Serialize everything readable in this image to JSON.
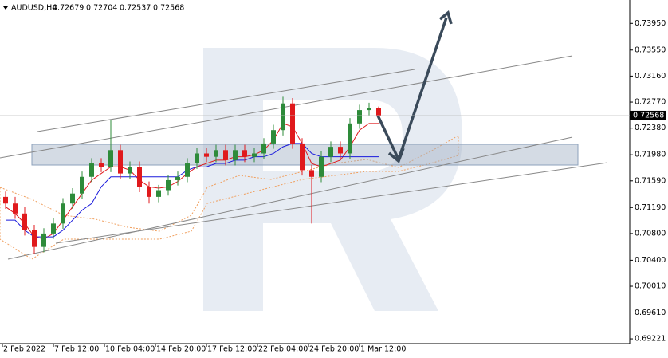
{
  "chart_data": {
    "type": "candlestick",
    "symbol": "AUDUSD,H4",
    "ohlc": [
      0.72679,
      0.72704,
      0.72537,
      0.72568
    ],
    "x": [
      1,
      4,
      7,
      10,
      13,
      16,
      19,
      22,
      25,
      28,
      31,
      34,
      37,
      40,
      43,
      46,
      49,
      52,
      55,
      58,
      61,
      64,
      67,
      70,
      73,
      76,
      79,
      82,
      85,
      88,
      91,
      94,
      97,
      100,
      103,
      106,
      109,
      112,
      115,
      118
    ],
    "open": [
      0.7135,
      0.7125,
      0.711,
      0.7085,
      0.706,
      0.708,
      0.7095,
      0.7125,
      0.714,
      0.7165,
      0.7185,
      0.718,
      0.7205,
      0.717,
      0.718,
      0.715,
      0.7135,
      0.7145,
      0.716,
      0.7165,
      0.7185,
      0.72,
      0.7195,
      0.7205,
      0.719,
      0.7205,
      0.7195,
      0.72,
      0.7215,
      0.7235,
      0.7275,
      0.7215,
      0.7175,
      0.7165,
      0.7195,
      0.721,
      0.72,
      0.7245,
      0.7265,
      0.72679
    ],
    "high": [
      0.7143,
      0.7135,
      0.712,
      0.7093,
      0.7088,
      0.7103,
      0.7133,
      0.7148,
      0.7173,
      0.7193,
      0.7193,
      0.725,
      0.7213,
      0.7188,
      0.7188,
      0.7158,
      0.7153,
      0.7168,
      0.7173,
      0.7193,
      0.7208,
      0.7208,
      0.7213,
      0.7213,
      0.7213,
      0.7213,
      0.7208,
      0.7223,
      0.7243,
      0.7285,
      0.7283,
      0.7223,
      0.7183,
      0.7203,
      0.7218,
      0.7218,
      0.7253,
      0.7273,
      0.7276,
      0.72704
    ],
    "low": [
      0.7117,
      0.7102,
      0.7077,
      0.705,
      0.7052,
      0.7072,
      0.7087,
      0.7117,
      0.7132,
      0.7157,
      0.7172,
      0.7172,
      0.7162,
      0.7162,
      0.7142,
      0.7125,
      0.7127,
      0.7137,
      0.7152,
      0.7157,
      0.7177,
      0.7187,
      0.7187,
      0.7182,
      0.7182,
      0.7187,
      0.7187,
      0.7192,
      0.7207,
      0.7227,
      0.7207,
      0.7167,
      0.7095,
      0.7157,
      0.7187,
      0.7192,
      0.7192,
      0.7237,
      0.7257,
      0.72537
    ],
    "close": [
      0.7125,
      0.711,
      0.7085,
      0.706,
      0.708,
      0.7095,
      0.7125,
      0.714,
      0.7165,
      0.7185,
      0.718,
      0.7205,
      0.717,
      0.718,
      0.715,
      0.7135,
      0.7145,
      0.716,
      0.7165,
      0.7185,
      0.72,
      0.7195,
      0.7205,
      0.719,
      0.7205,
      0.7195,
      0.72,
      0.7215,
      0.7235,
      0.7275,
      0.7215,
      0.7175,
      0.7165,
      0.7195,
      0.721,
      0.72,
      0.7245,
      0.7265,
      0.72679,
      0.72568
    ],
    "up_color": "#2e8b3a",
    "down_color": "#e0191c",
    "lines": [
      {
        "color": "#e0191c",
        "values": [
          0.712,
          0.711,
          0.7095,
          0.7075,
          0.7072,
          0.708,
          0.71,
          0.712,
          0.714,
          0.716,
          0.717,
          0.718,
          0.718,
          0.7175,
          0.716,
          0.715,
          0.7148,
          0.715,
          0.7158,
          0.717,
          0.718,
          0.7185,
          0.719,
          0.719,
          0.7195,
          0.7195,
          0.7198,
          0.7205,
          0.722,
          0.7245,
          0.724,
          0.7215,
          0.7185,
          0.718,
          0.7185,
          0.719,
          0.721,
          0.7235,
          0.7245,
          0.7245
        ]
      },
      {
        "color": "#1a1adc",
        "values": [
          0.71,
          0.71,
          0.7085,
          0.7075,
          0.7075,
          0.7075,
          0.7085,
          0.71,
          0.7115,
          0.7125,
          0.715,
          0.7165,
          0.7165,
          0.7165,
          0.7165,
          0.7165,
          0.7165,
          0.7165,
          0.7165,
          0.7175,
          0.718,
          0.718,
          0.7185,
          0.7185,
          0.719,
          0.719,
          0.7195,
          0.7195,
          0.72,
          0.721,
          0.7215,
          0.7215,
          0.72,
          0.7195,
          0.7195,
          0.7195,
          0.7195,
          0.7195,
          0.7195,
          0.7195
        ]
      }
    ],
    "xlim": [
      -0.75,
      196.75
    ],
    "xticks": [
      {
        "value": 0,
        "label": "2 Feb 2022"
      },
      {
        "value": 16,
        "label": "7 Feb 12:00"
      },
      {
        "value": 32,
        "label": "10 Feb 04:00"
      },
      {
        "value": 48,
        "label": "14 Feb 20:00"
      },
      {
        "value": 64,
        "label": "17 Feb 12:00"
      },
      {
        "value": 80,
        "label": "22 Feb 04:00"
      },
      {
        "value": 96,
        "label": "24 Feb 20:00"
      },
      {
        "value": 112,
        "label": "1 Mar 12:00"
      }
    ],
    "ylim": [
      0.6915,
      0.743
    ],
    "yticks": [
      {
        "value": 0.7395,
        "label": "0.73950"
      },
      {
        "value": 0.7355,
        "label": "0.73550"
      },
      {
        "value": 0.7316,
        "label": "0.73160"
      },
      {
        "value": 0.7277,
        "label": "0.72770"
      },
      {
        "value": 0.7238,
        "label": "0.72380"
      },
      {
        "value": 0.7198,
        "label": "0.71980"
      },
      {
        "value": 0.7159,
        "label": "0.71590"
      },
      {
        "value": 0.7119,
        "label": "0.71190"
      },
      {
        "value": 0.708,
        "label": "0.70800"
      },
      {
        "value": 0.704,
        "label": "0.70400"
      },
      {
        "value": 0.7001,
        "label": "0.70010"
      },
      {
        "value": 0.6961,
        "label": "0.69610"
      },
      0.69221
    ]
  }
}
